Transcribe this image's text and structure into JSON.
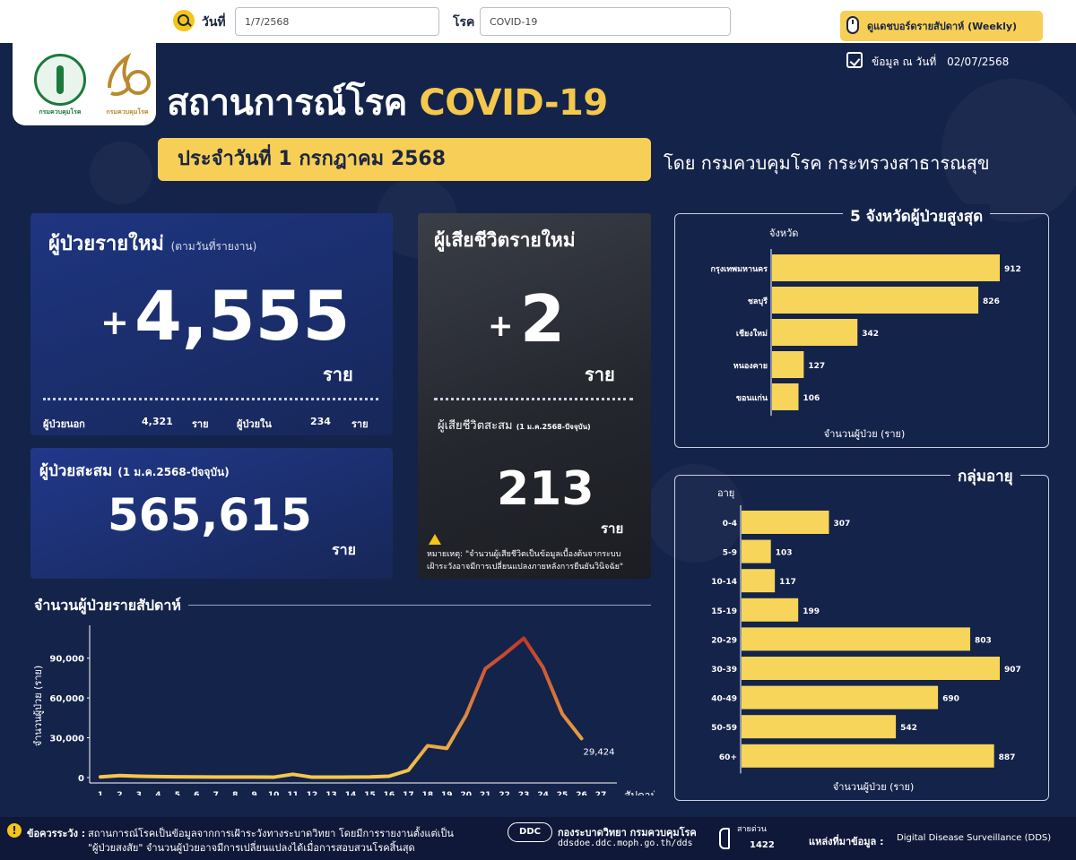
{
  "filters": {
    "date_label": "วันที่",
    "date_value": "1/7/2568",
    "disease_label": "โรค",
    "disease_value": "COVID-19",
    "weekly_button": "ดูแดชบอร์ดรายสัปดาห์ (Weekly)"
  },
  "header": {
    "logo_ddc_text": "กรมควบคุมโรค",
    "logo_80_text": "กรมควบคุมโรค",
    "title_main": "สถานการณ์โรค",
    "title_accent": "COVID-19",
    "asof_label": "ข้อมูล ณ วันที่",
    "asof_value": "02/07/2568",
    "date_banner": "ประจำวันที่   1 กรกฎาคม 2568",
    "by_line": "โดย กรมควบคุมโรค  กระทรวงสาธารณสุข"
  },
  "new_cases": {
    "title": "ผู้ป่วยรายใหม่",
    "subtitle": "(ตามวันที่รายงาน)",
    "plus": "+",
    "value": "4,555",
    "unit": "ราย",
    "outpatient_label": "ผู้ป่วยนอก",
    "outpatient_value": "4,321",
    "outpatient_unit": "ราย",
    "inpatient_label": "ผู้ป่วยใน",
    "inpatient_value": "234",
    "inpatient_unit": "ราย"
  },
  "cumulative_cases": {
    "title": "ผู้ป่วยสะสม",
    "subtitle": "(1 ม.ค.2568-ปัจจุบัน)",
    "value": "565,615",
    "unit": "ราย"
  },
  "deaths": {
    "title": "ผู้เสียชีวิตรายใหม่",
    "plus": "+",
    "value": "2",
    "unit": "ราย",
    "cum_label": "ผู้เสียชีวิตสะสม",
    "cum_sub": "(1 ม.ค.2568-ปัจจุบัน)",
    "cum_value": "213",
    "cum_unit": "ราย",
    "note_line1": "หมายเหตุ:   \"จำนวนผู้เสียชีวิตเป็นข้อมูลเบื้องต้นจากระบบ",
    "note_line2": "เฝ้าระวังอาจมีการเปลี่ยนแปลงภายหลังการยืนยันวินิจฉัย\""
  },
  "weekly_chart": {
    "title": "จำนวนผู้ป่วยรายสัปดาห์"
  },
  "provinces_panel": {
    "title": "5  จังหวัดผู้ป่วยสูงสุด"
  },
  "age_panel": {
    "title": "กลุ่มอายุ"
  },
  "chart_data": [
    {
      "type": "line",
      "x": [
        1,
        2,
        3,
        4,
        5,
        6,
        7,
        8,
        9,
        10,
        11,
        12,
        13,
        14,
        15,
        16,
        17,
        18,
        19,
        20,
        21,
        22,
        23,
        24,
        25,
        26
      ],
      "x_ticks": [
        1,
        2,
        3,
        4,
        5,
        6,
        7,
        8,
        9,
        10,
        11,
        12,
        13,
        14,
        15,
        16,
        17,
        18,
        19,
        20,
        21,
        22,
        23,
        24,
        25,
        26,
        27
      ],
      "values": [
        500,
        1500,
        1000,
        800,
        600,
        500,
        400,
        400,
        400,
        300,
        2500,
        300,
        300,
        400,
        500,
        1000,
        5500,
        24000,
        22000,
        47000,
        82000,
        93000,
        105000,
        83000,
        48000,
        29424
      ],
      "xlabel": "สัปดาห์",
      "ylabel": "จำนวนผู้ป่วย (ราย)",
      "ylim": [
        0,
        108000
      ],
      "yticks": [
        "0",
        "30,000",
        "60,000",
        "90,000"
      ],
      "ytick_values": [
        0,
        30000,
        60000,
        90000
      ],
      "last_label": "29,424",
      "color_low": "#f5c84c",
      "color_high": "#c0392b"
    },
    {
      "type": "bar",
      "orientation": "horizontal",
      "category_title": "จังหวัด",
      "categories": [
        "กรุงเทพมหานคร",
        "ชลบุรี",
        "เชียงใหม่",
        "หนองคาย",
        "ขอนแก่น"
      ],
      "values": [
        912,
        826,
        342,
        127,
        106
      ],
      "xlabel": "จำนวนผู้ป่วย (ราย)",
      "xlim": [
        0,
        912
      ],
      "bar_color": "#f7d55a"
    },
    {
      "type": "bar",
      "orientation": "horizontal",
      "category_title": "อายุ",
      "categories": [
        "0-4",
        "5-9",
        "10-14",
        "15-19",
        "20-29",
        "30-39",
        "40-49",
        "50-59",
        "60+"
      ],
      "values": [
        307,
        103,
        117,
        199,
        803,
        907,
        690,
        542,
        887
      ],
      "xlabel": "จำนวนผู้ป่วย (ราย)",
      "xlim": [
        0,
        907
      ],
      "bar_color": "#f7d55a"
    }
  ],
  "footer": {
    "caution_label": "ข้อควรระวัง :",
    "caution_line1": "สถานการณ์โรคเป็นข้อมูลจากการเฝ้าระวังทางระบาดวิทยา โดยมีการรายงานตั้งแต่เป็น",
    "caution_line2": "\"ผู้ป่วยสงสัย\" จำนวนผู้ป่วยอาจมีการเปลี่ยนแปลงได้เมื่อการสอบสวนโรคสิ้นสุด",
    "ddc_mark": "DDC",
    "dept_name": "กองระบาดวิทยา กรมควบคุมโรค",
    "dept_url": "ddsdoe.ddc.moph.go.th/dds",
    "hotline_label": "สายด่วน",
    "hotline_number": "1422",
    "source_label": "แหล่งที่มาข้อมูล :",
    "source_value": "Digital Disease Surveillance (DDS)"
  }
}
